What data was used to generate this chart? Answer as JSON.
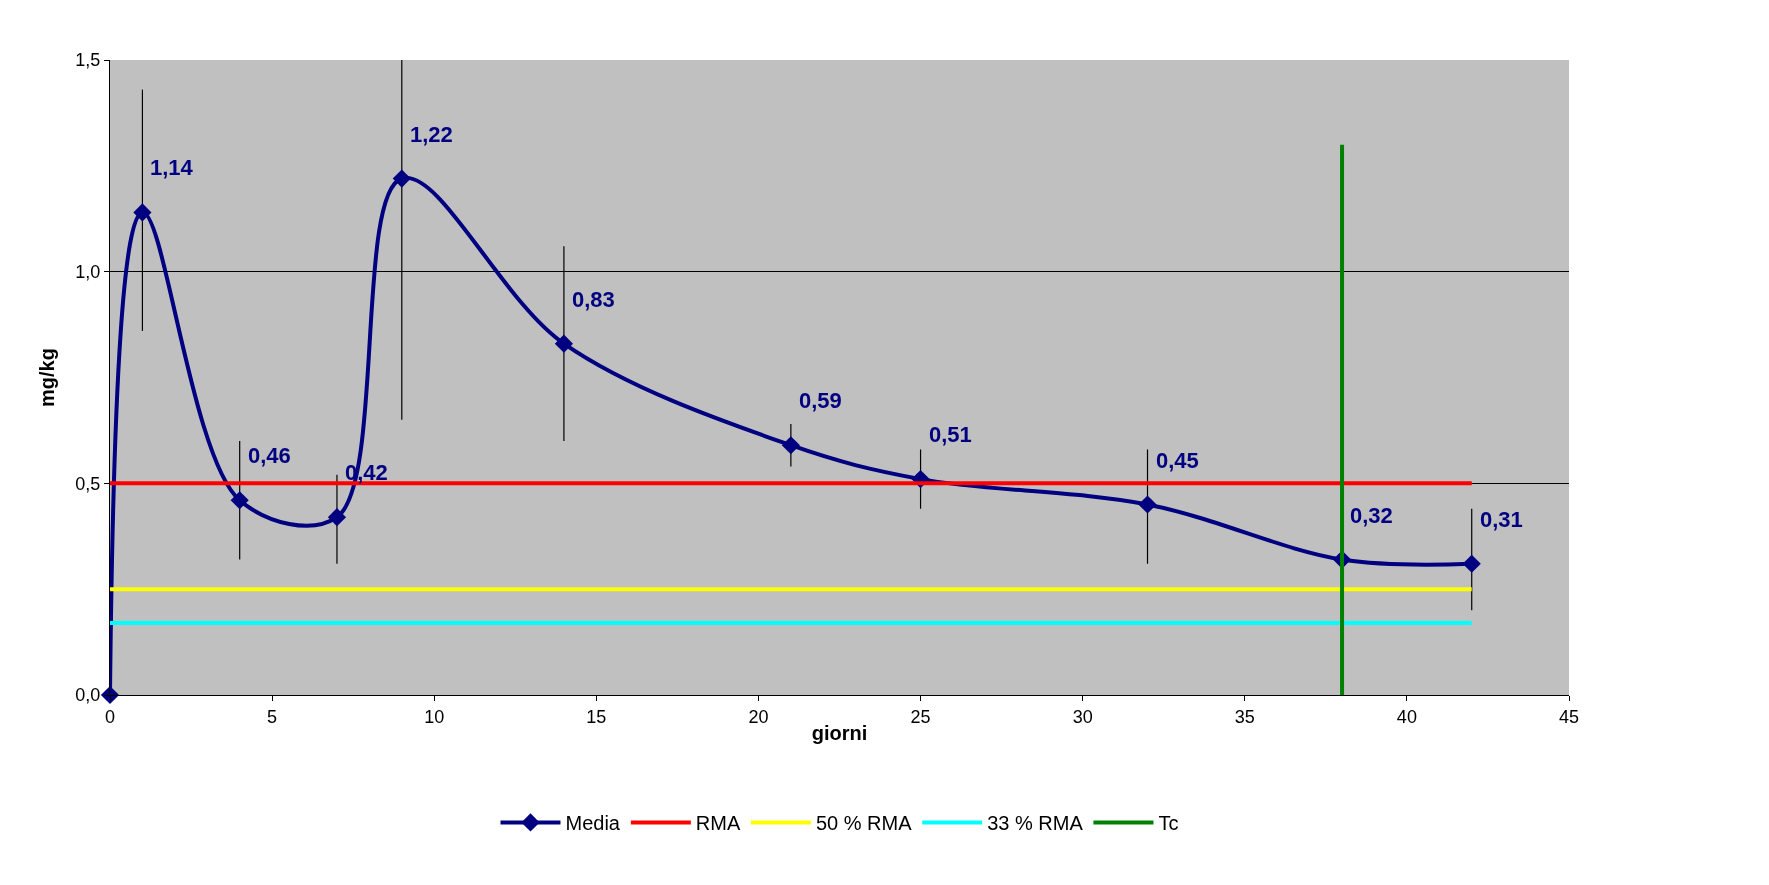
{
  "chart_data": {
    "type": "line",
    "xlabel": "giorni",
    "ylabel": "mg/kg",
    "xlim": [
      0,
      45
    ],
    "xticks": [
      0,
      5,
      10,
      15,
      20,
      25,
      30,
      35,
      40,
      45
    ],
    "ylim": [
      0,
      1.5
    ],
    "yticks": [
      {
        "value": 0,
        "label": "0,0"
      },
      {
        "value": 0.5,
        "label": "0,5"
      },
      {
        "value": 1,
        "label": "1,0"
      },
      {
        "value": 1.5,
        "label": "1,5"
      }
    ],
    "grid": "y",
    "legend": "bottom",
    "series": [
      {
        "name": "Media",
        "color": "#000080",
        "marker": "diamond",
        "x": [
          0,
          1,
          4,
          7,
          9,
          14,
          21,
          25,
          32,
          38,
          42
        ],
        "values": [
          0,
          1.14,
          0.46,
          0.42,
          1.22,
          0.83,
          0.59,
          0.51,
          0.45,
          0.32,
          0.31
        ],
        "errors": [
          null,
          [
            0.86,
            1.43
          ],
          [
            0.32,
            0.6
          ],
          [
            0.31,
            0.52
          ],
          [
            0.65,
            1.5
          ],
          [
            0.6,
            1.06
          ],
          [
            0.54,
            0.64
          ],
          [
            0.44,
            0.58
          ],
          [
            0.31,
            0.58
          ],
          null,
          [
            0.2,
            0.44
          ]
        ],
        "value_labels": [
          null,
          "1,14",
          "0,46",
          "0,42",
          "1,22",
          "0,83",
          "0,59",
          "0,51",
          "0,45",
          "0,32",
          "0,31"
        ]
      },
      {
        "name": "RMA",
        "color": "#ff0000",
        "marker": "none",
        "x": [
          0,
          42
        ],
        "values": [
          0.5,
          0.5
        ]
      },
      {
        "name": "50 % RMA",
        "color": "#ffff00",
        "marker": "none",
        "x": [
          0,
          42
        ],
        "values": [
          0.25,
          0.25
        ]
      },
      {
        "name": "33 % RMA",
        "color": "#00ffff",
        "marker": "none",
        "x": [
          0,
          42
        ],
        "values": [
          0.17,
          0.17
        ]
      },
      {
        "name": "Tc",
        "color": "#008000",
        "marker": "none",
        "x": [
          38,
          38
        ],
        "values": [
          0,
          1.3
        ]
      }
    ]
  }
}
